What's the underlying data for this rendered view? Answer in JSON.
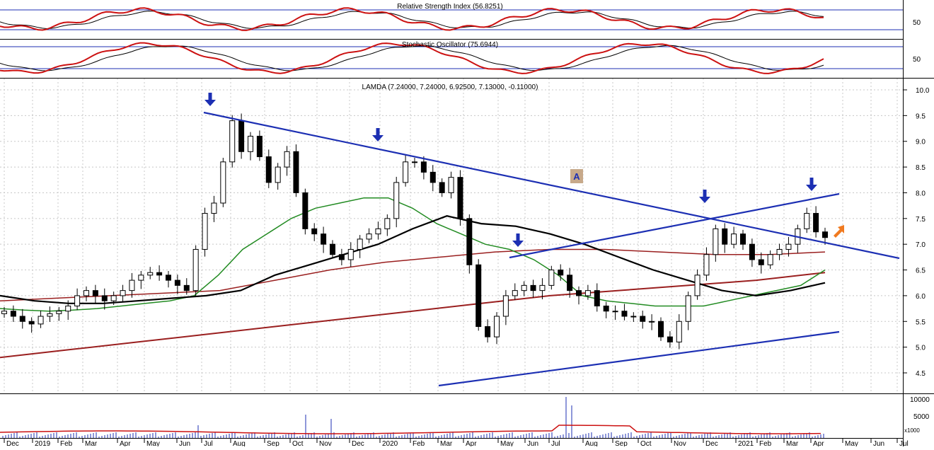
{
  "panels": {
    "rsi": {
      "title": "Relative Strength Index (56.8251)",
      "axis_label": "50"
    },
    "stochastic": {
      "title": "Stochastic Oscillator (75.6944)",
      "axis_label": "50"
    },
    "price": {
      "title": "LAMDA (7.24000, 7.24000, 6.92500, 7.13000, -0.11000)"
    },
    "volume": {
      "ticks": [
        "10000",
        "5000"
      ],
      "unit": "x1000"
    }
  },
  "chart_data": {
    "type": "candlestick",
    "symbol": "LAMDA",
    "ohlc_last": {
      "open": 7.24,
      "high": 7.24,
      "low": 6.925,
      "close": 7.13,
      "change": -0.11
    },
    "y_range": [
      4.2,
      10.0
    ],
    "y_ticks": [
      "10.0",
      "9.5",
      "9.0",
      "8.5",
      "8.0",
      "7.5",
      "7.0",
      "6.5",
      "6.0",
      "5.5",
      "5.0",
      "4.5"
    ],
    "x_labels": [
      "Dec",
      "2019",
      "Feb",
      "Mar",
      "Apr",
      "May",
      "Jun",
      "Jul",
      "Aug",
      "Sep",
      "Oct",
      "Nov",
      "Dec",
      "2020",
      "Feb",
      "Mar",
      "Apr",
      "May",
      "Jun",
      "Jul",
      "Aug",
      "Sep",
      "Oct",
      "Nov",
      "Dec",
      "2021",
      "Feb",
      "Mar",
      "Apr",
      "May",
      "Jun",
      "Jul"
    ],
    "closes": [
      5.7,
      5.6,
      5.5,
      5.45,
      5.6,
      5.65,
      5.7,
      5.8,
      6.0,
      6.1,
      6.0,
      5.9,
      6.0,
      6.1,
      6.3,
      6.4,
      6.45,
      6.4,
      6.3,
      6.2,
      6.1,
      6.9,
      7.6,
      7.8,
      8.6,
      9.4,
      8.8,
      9.1,
      8.7,
      8.2,
      8.5,
      8.8,
      8.0,
      7.3,
      7.2,
      7.0,
      6.8,
      6.7,
      6.9,
      7.1,
      7.2,
      7.3,
      7.5,
      8.2,
      8.6,
      8.6,
      8.4,
      8.2,
      8.0,
      8.3,
      7.5,
      6.6,
      5.4,
      5.2,
      5.6,
      6.0,
      6.1,
      6.2,
      6.1,
      6.2,
      6.5,
      6.4,
      6.1,
      6.0,
      6.1,
      5.8,
      5.7,
      5.7,
      5.6,
      5.6,
      5.5,
      5.5,
      5.2,
      5.1,
      5.5,
      6.0,
      6.4,
      6.8,
      7.3,
      7.0,
      7.2,
      7.0,
      6.7,
      6.6,
      6.8,
      6.9,
      7.0,
      7.3,
      7.6,
      7.24,
      7.13
    ],
    "ma_green": [
      5.75,
      5.72,
      5.7,
      5.72,
      5.75,
      5.8,
      5.85,
      5.9,
      6.0,
      6.4,
      6.9,
      7.2,
      7.5,
      7.7,
      7.8,
      7.9,
      7.9,
      7.7,
      7.4,
      7.2,
      7.0,
      6.9,
      6.7,
      6.4,
      6.0,
      5.9,
      5.85,
      5.8,
      5.8,
      5.8,
      5.9,
      6.0,
      6.1,
      6.2,
      6.5
    ],
    "ma_black": [
      6.0,
      5.9,
      5.85,
      5.85,
      5.9,
      5.95,
      6.0,
      6.1,
      6.4,
      6.6,
      6.8,
      7.0,
      7.3,
      7.55,
      7.4,
      7.35,
      7.2,
      7.0,
      6.75,
      6.5,
      6.3,
      6.1,
      6.0,
      6.1,
      6.25
    ],
    "ma_red_short": [
      5.9,
      5.95,
      6.0,
      6.05,
      6.1,
      6.3,
      6.5,
      6.65,
      6.75,
      6.85,
      6.9,
      6.9,
      6.85,
      6.8,
      6.8,
      6.85
    ],
    "ma_red_long": [
      4.8,
      4.95,
      5.1,
      5.25,
      5.4,
      5.55,
      5.7,
      5.85,
      6.0,
      6.1,
      6.2,
      6.3,
      6.45
    ],
    "trendlines": [
      {
        "from": [
          "Jul 2019",
          9.55
        ],
        "to": [
          "May 2021",
          6.75
        ]
      },
      {
        "from": [
          "Mar 2020",
          4.25
        ],
        "to": [
          "Apr 2021",
          5.25
        ]
      },
      {
        "from": [
          "Jun 2020",
          6.75
        ],
        "to": [
          "Apr 2021",
          7.95
        ]
      }
    ],
    "annotations": [
      {
        "text": "A"
      }
    ],
    "colors": {
      "trend": "#1c2fb3",
      "ma_green": "#228b22",
      "ma_black": "#000000",
      "ma_red": "#9a1f1f",
      "rsi": "#cc1111",
      "arrow_down": "#1c2fb3",
      "arrow_highlight": "#f07a20"
    }
  }
}
